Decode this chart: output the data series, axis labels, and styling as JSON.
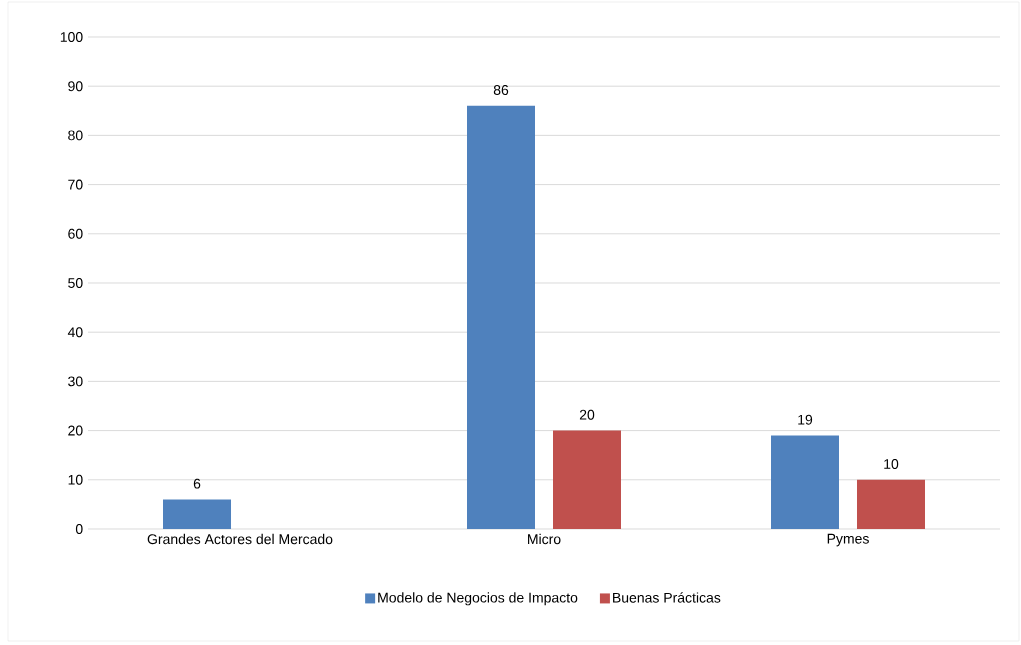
{
  "chart_data": {
    "type": "bar",
    "categories": [
      "Grandes Actores del Mercado",
      "Micro",
      "Pymes"
    ],
    "series": [
      {
        "name": "Modelo de Negocios de Impacto",
        "color": "#4f81bd",
        "values": [
          6,
          86,
          19
        ]
      },
      {
        "name": "Buenas Prácticas",
        "color": "#c0504d",
        "values": [
          null,
          20,
          10
        ]
      }
    ],
    "ylim": [
      0,
      100
    ],
    "yticks": [
      0,
      10,
      20,
      30,
      40,
      50,
      60,
      70,
      80,
      90,
      100
    ],
    "grid": "y",
    "legend": "bottom",
    "data_labels": true
  }
}
